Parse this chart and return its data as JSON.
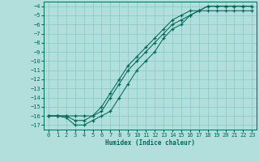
{
  "xlabel": "Humidex (Indice chaleur)",
  "background_color": "#b2dfdb",
  "grid_color": "#80cbc4",
  "line_color": "#00695c",
  "xlim": [
    -0.5,
    23.5
  ],
  "ylim": [
    -17.5,
    -3.5
  ],
  "xticks": [
    0,
    1,
    2,
    3,
    4,
    5,
    6,
    7,
    8,
    9,
    10,
    11,
    12,
    13,
    14,
    15,
    16,
    17,
    18,
    19,
    20,
    21,
    22,
    23
  ],
  "yticks": [
    -4,
    -5,
    -6,
    -7,
    -8,
    -9,
    -10,
    -11,
    -12,
    -13,
    -14,
    -15,
    -16,
    -17
  ],
  "x_all": [
    0,
    1,
    2,
    3,
    4,
    5,
    6,
    7,
    8,
    9,
    10,
    11,
    12,
    13,
    14,
    15,
    16,
    17,
    18,
    19,
    20,
    21,
    22,
    23
  ],
  "y_line1": [
    -16,
    -16,
    -16.2,
    -17,
    -17,
    -16.5,
    -16,
    -15.5,
    -14,
    -12.5,
    -11,
    -10,
    -9,
    -7.5,
    -6.5,
    -6,
    -5,
    -4.5,
    -4.5,
    -4.5,
    -4.5,
    -4.5,
    -4.5,
    -4.5
  ],
  "y_line2": [
    -16,
    -16,
    -16,
    -16.5,
    -16.5,
    -16,
    -15.5,
    -14,
    -12.5,
    -11,
    -10,
    -9,
    -8,
    -7,
    -6,
    -5.5,
    -5,
    -4.5,
    -4,
    -4,
    -4,
    -4,
    -4,
    -4
  ],
  "y_line3": [
    -16,
    -16,
    -16,
    -16,
    -16,
    -16,
    -15,
    -13.5,
    -12,
    -10.5,
    -9.5,
    -8.5,
    -7.5,
    -6.5,
    -5.5,
    -5,
    -4.5,
    -4.5,
    -4,
    -4,
    -4,
    -4,
    -4,
    -4
  ]
}
